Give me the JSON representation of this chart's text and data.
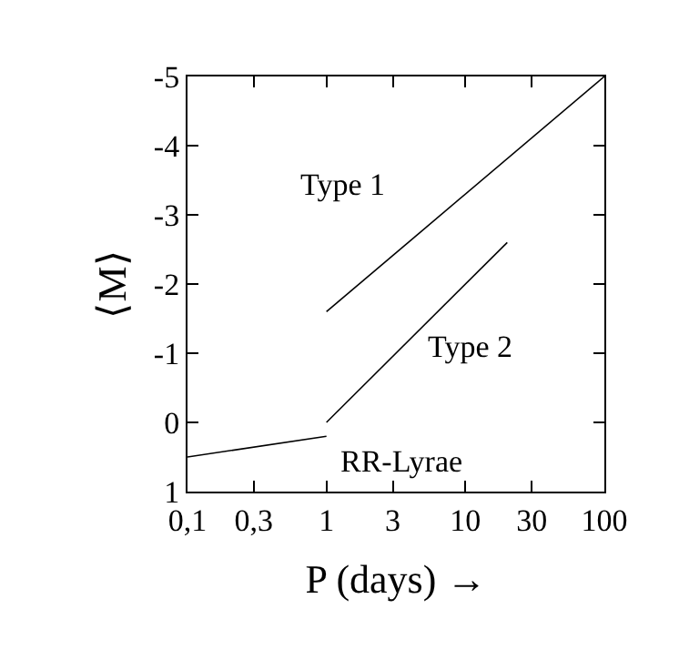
{
  "chart_data": {
    "type": "line",
    "xlabel": "P (days) →",
    "ylabel": "⟨M⟩",
    "log": "x",
    "series": [
      {
        "name": "Type 1",
        "color": "#000000",
        "x": [
          1,
          100
        ],
        "values": [
          -1.6,
          -5
        ]
      },
      {
        "name": "Type 2",
        "color": "#000000",
        "x": [
          1,
          20
        ],
        "values": [
          0,
          -2.6
        ]
      },
      {
        "name": "RR-Lyrae",
        "color": "#000000",
        "x": [
          0.1,
          1
        ],
        "values": [
          0.5,
          0.2
        ]
      }
    ],
    "xlim": [
      0.1,
      100
    ],
    "xticks": [
      {
        "value": 0.1,
        "label": "0,1"
      },
      {
        "value": 0.3,
        "label": "0,3"
      },
      1,
      3,
      10,
      30,
      100
    ],
    "ylim": [
      1,
      -5
    ],
    "yticks": [
      1,
      0,
      -1,
      -2,
      -3,
      -4,
      -5
    ],
    "legend": false,
    "marker": "none",
    "line_style": "solid"
  }
}
